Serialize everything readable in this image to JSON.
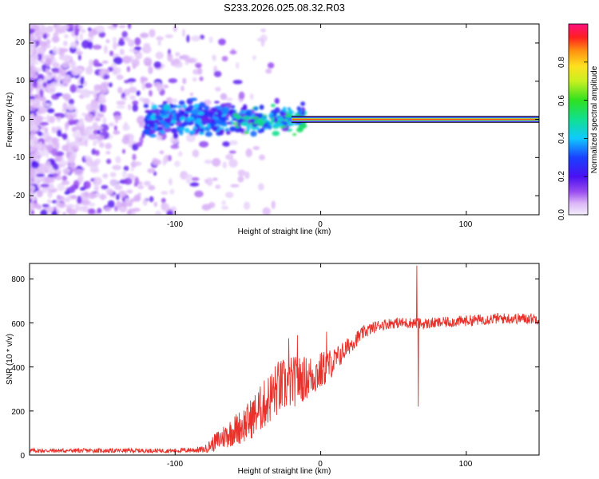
{
  "title": "S233.2026.025.08.32.R03",
  "chart_data": [
    {
      "type": "heatmap",
      "name": "spectrogram",
      "xlabel": "Height of straight line (km)",
      "ylabel": "Frequency (Hz)",
      "xlim": [
        -200,
        150
      ],
      "ylim": [
        -25,
        25
      ],
      "xticks": [
        -100,
        0,
        100
      ],
      "xtick_labels": [
        "-100",
        "0",
        "100"
      ],
      "yticks": [
        -20,
        -10,
        0,
        10,
        20
      ],
      "ytick_labels": [
        "-20",
        "-10",
        "0",
        "10",
        "20"
      ],
      "carrier_frequency_hz": 0,
      "carrier_start_km": -20,
      "colorbar": {
        "label": "Normalized spectral amplitude",
        "range": [
          0,
          1
        ],
        "ticks": [
          0.0,
          0.2,
          0.4,
          0.6,
          0.8
        ],
        "tick_labels": [
          "0.0",
          "0.2",
          "0.4",
          "0.6",
          "0.8"
        ]
      }
    },
    {
      "type": "line",
      "name": "snr",
      "xlabel": "Height of straight line (km)",
      "ylabel": "SNR (10 * v/v)",
      "xlim": [
        -200,
        150
      ],
      "ylim": [
        0,
        870
      ],
      "xticks": [
        -100,
        0,
        100
      ],
      "xtick_labels": [
        "-100",
        "0",
        "100"
      ],
      "yticks": [
        0,
        200,
        400,
        600,
        800
      ],
      "ytick_labels": [
        "0",
        "200",
        "400",
        "600",
        "800"
      ],
      "color": "#e8312a",
      "envelope": {
        "x": [
          -200,
          -150,
          -100,
          -80,
          -70,
          -60,
          -50,
          -40,
          -30,
          -20,
          -10,
          0,
          10,
          20,
          30,
          40,
          50,
          60,
          66,
          70,
          80,
          100,
          120,
          150
        ],
        "mean": [
          20,
          20,
          20,
          25,
          70,
          110,
          150,
          220,
          300,
          330,
          350,
          380,
          430,
          500,
          560,
          590,
          600,
          600,
          600,
          595,
          600,
          610,
          620,
          620
        ],
        "spread": [
          10,
          10,
          10,
          15,
          50,
          70,
          90,
          110,
          130,
          120,
          100,
          90,
          60,
          40,
          30,
          25,
          25,
          25,
          25,
          25,
          25,
          25,
          25,
          25
        ]
      },
      "spikes": [
        {
          "x": -22,
          "y": 530
        },
        {
          "x": -16,
          "y": 545
        },
        {
          "x": 4,
          "y": 560
        },
        {
          "x": 66,
          "y": 860
        },
        {
          "x": 67,
          "y": 220
        }
      ]
    }
  ]
}
